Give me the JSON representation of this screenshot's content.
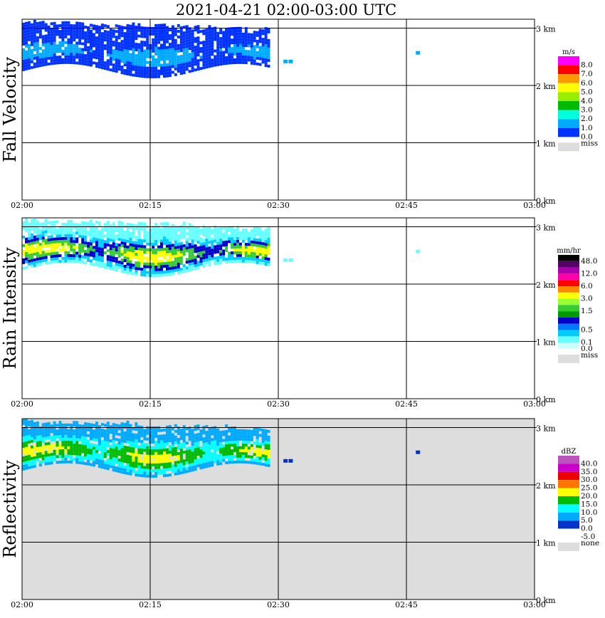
{
  "title": "2021-04-21   02:00-03:00 UTC",
  "chart_data": [
    {
      "type": "heatmap",
      "ylabel": "Fall Velocity",
      "unit": "m/s",
      "x_ticks": [
        "02:00",
        "02:15",
        "02:30",
        "02:45",
        "03:00"
      ],
      "y_ticks": [
        "0 km",
        "1 km",
        "2 km",
        "3 km"
      ],
      "xlim": [
        "02:00",
        "03:00"
      ],
      "ylim_km": [
        0,
        3.2
      ],
      "grid": true,
      "background": "white",
      "legend": [
        {
          "label": "8.0",
          "color": "#ff00ff"
        },
        {
          "label": "7.0",
          "color": "#ff0000"
        },
        {
          "label": "6.0",
          "color": "#ff9900"
        },
        {
          "label": "5.0",
          "color": "#ffff00"
        },
        {
          "label": "4.0",
          "color": "#99ee00"
        },
        {
          "label": "3.0",
          "color": "#00bb00"
        },
        {
          "label": "2.0",
          "color": "#00ffdd"
        },
        {
          "label": "1.0",
          "color": "#00aaff"
        },
        {
          "label": "0.0",
          "color": "#0033ff"
        }
      ],
      "miss_label": "miss",
      "miss_color": "#dddddd",
      "echo_layer_km": {
        "base": 2.1,
        "top": 3.1,
        "start": "02:00",
        "end": "02:29"
      }
    },
    {
      "type": "heatmap",
      "ylabel": "Rain Intensity",
      "unit": "mm/hr",
      "x_ticks": [
        "02:00",
        "02:15",
        "02:30",
        "02:45",
        "03:00"
      ],
      "y_ticks": [
        "0 km",
        "1 km",
        "2 km",
        "3 km"
      ],
      "xlim": [
        "02:00",
        "03:00"
      ],
      "ylim_km": [
        0,
        3.2
      ],
      "grid": true,
      "background": "white",
      "legend": [
        {
          "label": "48.0",
          "color": "#000000"
        },
        {
          "label": "",
          "color": "#550066"
        },
        {
          "label": "12.0",
          "color": "#aa00aa"
        },
        {
          "label": "",
          "color": "#ff00aa"
        },
        {
          "label": "6.0",
          "color": "#ff0000"
        },
        {
          "label": "",
          "color": "#ff8800"
        },
        {
          "label": "3.0",
          "color": "#ffff00"
        },
        {
          "label": "",
          "color": "#99ff33"
        },
        {
          "label": "1.5",
          "color": "#33cc33"
        },
        {
          "label": "",
          "color": "#009900"
        },
        {
          "label": "",
          "color": "#0000cc"
        },
        {
          "label": "0.5",
          "color": "#0077ff"
        },
        {
          "label": "",
          "color": "#00ccff"
        },
        {
          "label": "0.1",
          "color": "#66ffff"
        },
        {
          "label": "0.0",
          "color": "#ccffff"
        }
      ],
      "miss_label": "miss",
      "miss_color": "#dddddd",
      "echo_layer_km": {
        "base": 2.1,
        "top": 3.1,
        "start": "02:00",
        "end": "02:29"
      }
    },
    {
      "type": "heatmap",
      "ylabel": "Reflectivity",
      "unit": "dBZ",
      "x_ticks": [
        "02:00",
        "02:15",
        "02:30",
        "02:45",
        "03:00"
      ],
      "y_ticks": [
        "0 km",
        "1 km",
        "2 km",
        "3 km"
      ],
      "xlim": [
        "02:00",
        "03:00"
      ],
      "ylim_km": [
        0,
        3.2
      ],
      "grid": true,
      "background": "#dddddd",
      "legend": [
        {
          "label": "40.0",
          "color": "#bb55bb"
        },
        {
          "label": "35.0",
          "color": "#cc00cc"
        },
        {
          "label": "30.0",
          "color": "#ee0000"
        },
        {
          "label": "25.0",
          "color": "#ff7700"
        },
        {
          "label": "20.0",
          "color": "#ffff00"
        },
        {
          "label": "15.0",
          "color": "#00bb00"
        },
        {
          "label": "10.0",
          "color": "#00ffff"
        },
        {
          "label": "5.0",
          "color": "#00aaff"
        },
        {
          "label": "0.0",
          "color": "#0033cc"
        },
        {
          "label": "-5.0",
          "color": "#ffffff"
        }
      ],
      "miss_label": "none",
      "miss_color": "#dddddd",
      "echo_layer_km": {
        "base": 2.1,
        "top": 3.1,
        "start": "02:00",
        "end": "02:29"
      }
    }
  ]
}
